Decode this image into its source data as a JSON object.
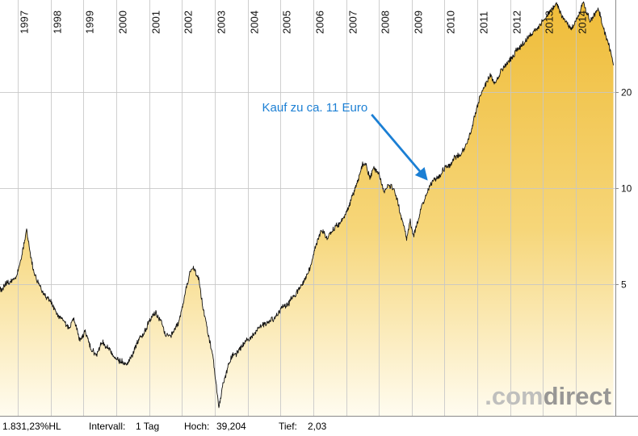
{
  "chart_data": {
    "type": "area",
    "title": "",
    "xlabel": "",
    "ylabel": "",
    "x_axis": {
      "ticks": [
        1997,
        1998,
        1999,
        2000,
        2001,
        2002,
        2003,
        2004,
        2005,
        2006,
        2007,
        2008,
        2009,
        2010,
        2011,
        2012,
        2013,
        2014
      ],
      "range": [
        1996.46,
        2015.15
      ],
      "grid": true
    },
    "y_axis": {
      "scale": "log",
      "ticks": [
        20,
        10,
        5
      ],
      "range": [
        2.0,
        39.3
      ],
      "side": "right",
      "grid": true
    },
    "series": [
      {
        "name": "Kurs",
        "points": [
          [
            1996.46,
            4.8
          ],
          [
            1996.7,
            5.0
          ],
          [
            1996.9,
            5.1
          ],
          [
            1997.05,
            5.6
          ],
          [
            1997.18,
            6.6
          ],
          [
            1997.27,
            7.4
          ],
          [
            1997.38,
            6.2
          ],
          [
            1997.5,
            5.4
          ],
          [
            1997.65,
            5.0
          ],
          [
            1997.8,
            4.7
          ],
          [
            1998.0,
            4.4
          ],
          [
            1998.2,
            4.0
          ],
          [
            1998.4,
            3.8
          ],
          [
            1998.55,
            3.6
          ],
          [
            1998.7,
            3.9
          ],
          [
            1998.9,
            3.3
          ],
          [
            1999.05,
            3.5
          ],
          [
            1999.2,
            3.2
          ],
          [
            1999.4,
            3.0
          ],
          [
            1999.55,
            3.3
          ],
          [
            1999.7,
            3.1
          ],
          [
            1999.9,
            3.0
          ],
          [
            2000.1,
            2.9
          ],
          [
            2000.3,
            2.85
          ],
          [
            2000.5,
            3.1
          ],
          [
            2000.7,
            3.4
          ],
          [
            2000.9,
            3.7
          ],
          [
            2001.05,
            4.0
          ],
          [
            2001.2,
            4.15
          ],
          [
            2001.35,
            3.9
          ],
          [
            2001.5,
            3.5
          ],
          [
            2001.65,
            3.4
          ],
          [
            2001.8,
            3.6
          ],
          [
            2001.95,
            3.9
          ],
          [
            2002.1,
            4.6
          ],
          [
            2002.25,
            5.3
          ],
          [
            2002.35,
            5.6
          ],
          [
            2002.5,
            5.1
          ],
          [
            2002.65,
            4.2
          ],
          [
            2002.8,
            3.5
          ],
          [
            2002.95,
            2.9
          ],
          [
            2003.05,
            2.4
          ],
          [
            2003.12,
            2.05
          ],
          [
            2003.25,
            2.5
          ],
          [
            2003.4,
            2.8
          ],
          [
            2003.55,
            3.0
          ],
          [
            2003.75,
            3.1
          ],
          [
            2003.95,
            3.25
          ],
          [
            2004.15,
            3.4
          ],
          [
            2004.35,
            3.5
          ],
          [
            2004.55,
            3.65
          ],
          [
            2004.75,
            3.85
          ],
          [
            2004.95,
            4.05
          ],
          [
            2005.15,
            4.3
          ],
          [
            2005.35,
            4.55
          ],
          [
            2005.55,
            4.85
          ],
          [
            2005.75,
            5.2
          ],
          [
            2005.95,
            5.8
          ],
          [
            2006.1,
            6.6
          ],
          [
            2006.25,
            7.4
          ],
          [
            2006.4,
            6.9
          ],
          [
            2006.55,
            7.4
          ],
          [
            2006.7,
            7.6
          ],
          [
            2006.9,
            7.9
          ],
          [
            2007.05,
            8.4
          ],
          [
            2007.2,
            9.4
          ],
          [
            2007.35,
            10.5
          ],
          [
            2007.5,
            11.8
          ],
          [
            2007.6,
            12.0
          ],
          [
            2007.72,
            10.7
          ],
          [
            2007.85,
            11.3
          ],
          [
            2008.0,
            10.9
          ],
          [
            2008.15,
            9.8
          ],
          [
            2008.3,
            10.4
          ],
          [
            2008.45,
            10.0
          ],
          [
            2008.6,
            9.0
          ],
          [
            2008.72,
            7.8
          ],
          [
            2008.85,
            7.0
          ],
          [
            2008.95,
            7.9
          ],
          [
            2009.05,
            6.9
          ],
          [
            2009.2,
            7.9
          ],
          [
            2009.3,
            8.8
          ],
          [
            2009.45,
            9.5
          ],
          [
            2009.6,
            10.2
          ],
          [
            2009.75,
            10.7
          ],
          [
            2009.9,
            11.1
          ],
          [
            2010.05,
            11.5
          ],
          [
            2010.2,
            11.9
          ],
          [
            2010.35,
            12.4
          ],
          [
            2010.5,
            12.9
          ],
          [
            2010.65,
            13.5
          ],
          [
            2010.8,
            15.0
          ],
          [
            2010.95,
            17.4
          ],
          [
            2011.1,
            19.6
          ],
          [
            2011.25,
            21.2
          ],
          [
            2011.4,
            22.4
          ],
          [
            2011.52,
            21.0
          ],
          [
            2011.65,
            22.6
          ],
          [
            2011.8,
            23.4
          ],
          [
            2011.95,
            24.4
          ],
          [
            2012.1,
            26.0
          ],
          [
            2012.25,
            27.6
          ],
          [
            2012.4,
            28.4
          ],
          [
            2012.55,
            29.8
          ],
          [
            2012.7,
            30.9
          ],
          [
            2012.85,
            32.2
          ],
          [
            2013.0,
            33.9
          ],
          [
            2013.15,
            35.6
          ],
          [
            2013.3,
            37.0
          ],
          [
            2013.42,
            38.3
          ],
          [
            2013.55,
            35.5
          ],
          [
            2013.7,
            33.2
          ],
          [
            2013.85,
            31.6
          ],
          [
            2014.0,
            33.6
          ],
          [
            2014.12,
            35.8
          ],
          [
            2014.22,
            38.0
          ],
          [
            2014.32,
            35.2
          ],
          [
            2014.42,
            33.2
          ],
          [
            2014.55,
            34.6
          ],
          [
            2014.68,
            36.2
          ],
          [
            2014.8,
            33.0
          ],
          [
            2014.9,
            30.5
          ],
          [
            2015.0,
            28.5
          ],
          [
            2015.08,
            26.0
          ],
          [
            2015.15,
            24.0
          ]
        ]
      }
    ],
    "annotations": [
      {
        "text": "Kauf zu ca. 11 Euro",
        "x": 2009.55,
        "y": 10.3,
        "color": "#1b7fd4"
      }
    ],
    "colors": {
      "area_top": "#efbc38",
      "area_mid": "#f6d679",
      "area_bottom": "#fffcf0",
      "line": "#141414",
      "grid": "#c7c7c7",
      "axis": "#8a8a8a",
      "tick_text": "#111111"
    }
  },
  "status_bar": {
    "hl": "1.831,23%HL",
    "interval_label": "Intervall:",
    "interval_value": "1 Tag",
    "high_label": "Hoch:",
    "high_value": "39,204",
    "low_label": "Tief:",
    "low_value": "2,03"
  },
  "watermark": {
    "prefix": ".com",
    "suffix": "direct",
    "prefix_color": "#b9b9b9",
    "suffix_color": "#8d8d8d"
  }
}
